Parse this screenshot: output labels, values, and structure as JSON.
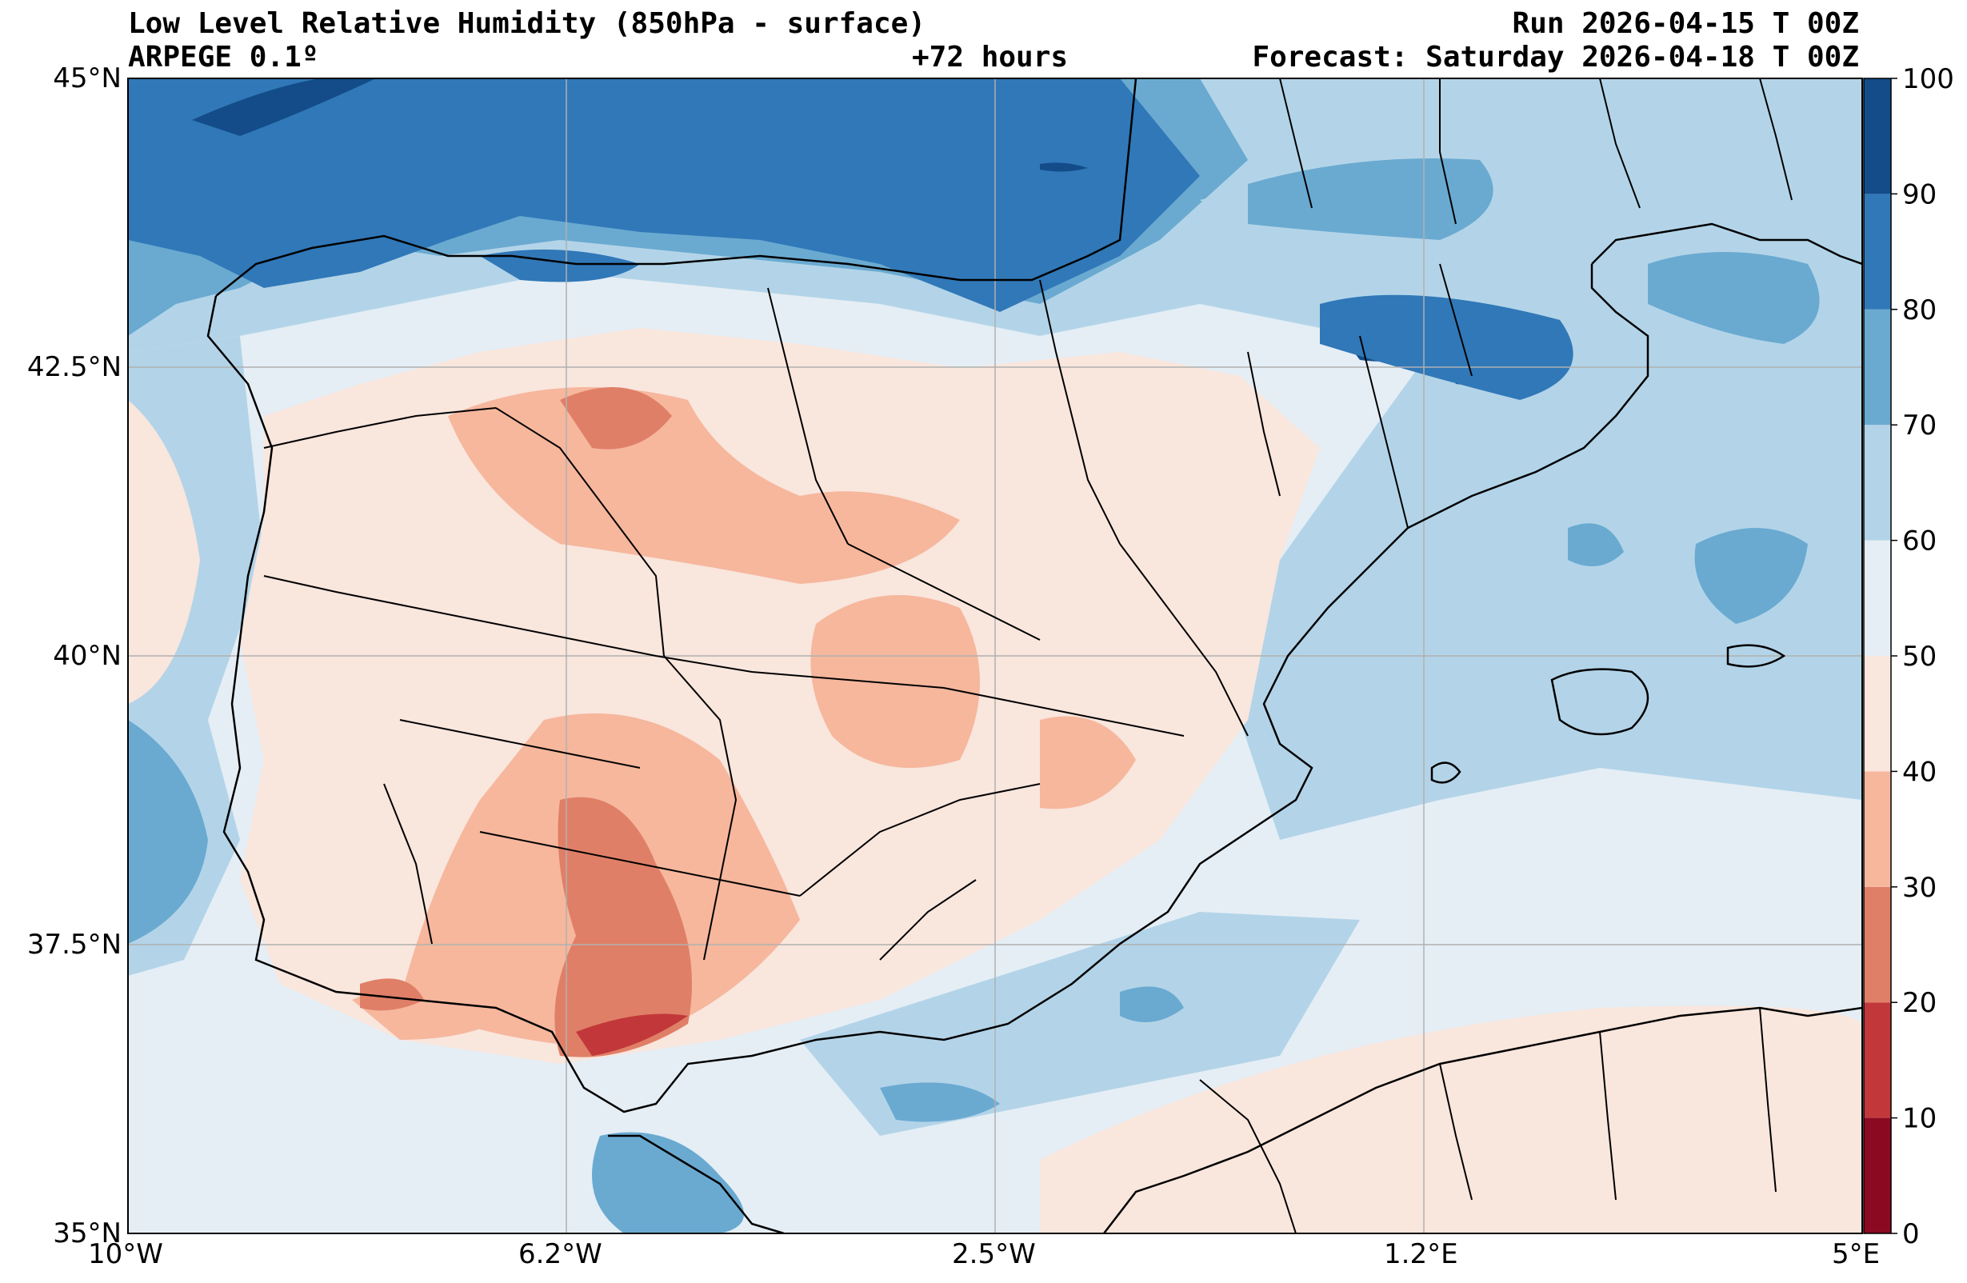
{
  "header": {
    "title": "Low Level Relative Humidity (850hPa - surface)",
    "model": "ARPEGE 0.1º",
    "lead_time": "+72 hours",
    "run": "Run 2026-04-15 T 00Z",
    "forecast": "Forecast: Saturday 2026-04-18 T 00Z"
  },
  "map": {
    "lon_range": [
      -10,
      5
    ],
    "lat_range": [
      35,
      45
    ],
    "lon_labels": [
      "10°W",
      "6.2°W",
      "2.5°W",
      "1.2°E",
      "5°E"
    ],
    "lat_labels": [
      "45°N",
      "42.5°N",
      "40°N",
      "37.5°N",
      "35°N"
    ]
  },
  "colorbar": {
    "levels": [
      0,
      10,
      20,
      30,
      40,
      50,
      60,
      70,
      80,
      90,
      100
    ],
    "labels": [
      "0",
      "10",
      "20",
      "30",
      "40",
      "50",
      "60",
      "70",
      "80",
      "90",
      "100"
    ],
    "colors": [
      "#8b0a22",
      "#c2383a",
      "#e07f67",
      "#f6b79d",
      "#f9e6dd",
      "#e5eef5",
      "#b3d4e8",
      "#6aaad1",
      "#3078b8",
      "#134c89"
    ]
  }
}
